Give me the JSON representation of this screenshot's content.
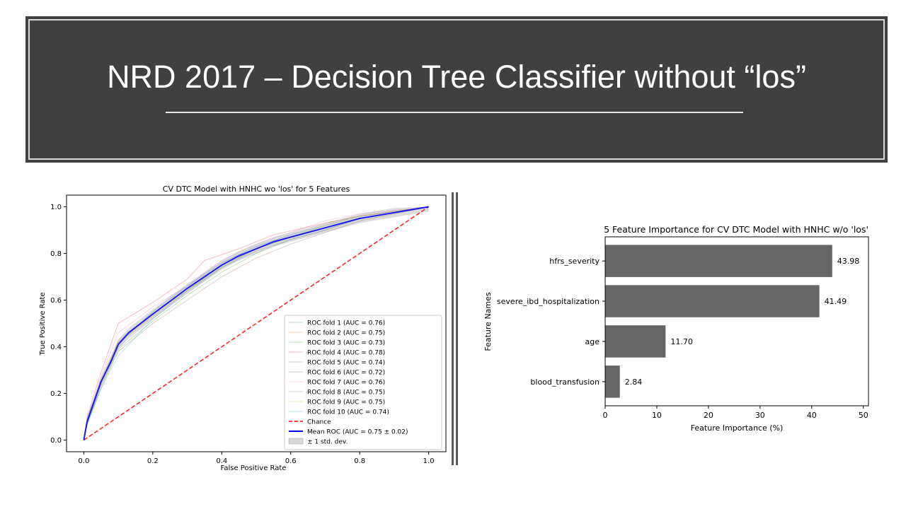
{
  "slide": {
    "title": "NRD 2017 – Decision Tree Classifier without “los”"
  },
  "chart_data": [
    {
      "type": "line",
      "title": "CV DTC Model with HNHC wo 'los' for 5 Features",
      "xlabel": "False Positive Rate",
      "ylabel": "True Positive Rate",
      "xlim": [
        -0.05,
        1.05
      ],
      "ylim": [
        -0.05,
        1.05
      ],
      "xticks": [
        "0.0",
        "0.2",
        "0.4",
        "0.6",
        "0.8",
        "1.0"
      ],
      "yticks": [
        "0.0",
        "0.2",
        "0.4",
        "0.6",
        "0.8",
        "1.0"
      ],
      "legend_position": "lower-right",
      "series": [
        {
          "name": "ROC fold 1 (AUC = 0.76)",
          "color": "#1f77b4",
          "points": [
            [
              0,
              0
            ],
            [
              0.01,
              0.09
            ],
            [
              0.05,
              0.25
            ],
            [
              0.1,
              0.41
            ],
            [
              0.2,
              0.55
            ],
            [
              0.3,
              0.66
            ],
            [
              0.4,
              0.76
            ],
            [
              0.5,
              0.83
            ],
            [
              0.6,
              0.88
            ],
            [
              0.7,
              0.92
            ],
            [
              0.8,
              0.96
            ],
            [
              1,
              1
            ]
          ]
        },
        {
          "name": "ROC fold 2 (AUC = 0.75)",
          "color": "#ff7f0e",
          "points": [
            [
              0,
              0
            ],
            [
              0.01,
              0.08
            ],
            [
              0.05,
              0.24
            ],
            [
              0.1,
              0.42
            ],
            [
              0.2,
              0.53
            ],
            [
              0.3,
              0.64
            ],
            [
              0.4,
              0.75
            ],
            [
              0.5,
              0.82
            ],
            [
              0.6,
              0.87
            ],
            [
              0.7,
              0.91
            ],
            [
              0.8,
              0.95
            ],
            [
              1,
              1
            ]
          ]
        },
        {
          "name": "ROC fold 3 (AUC = 0.73)",
          "color": "#2ca02c",
          "points": [
            [
              0,
              0
            ],
            [
              0.01,
              0.07
            ],
            [
              0.05,
              0.23
            ],
            [
              0.1,
              0.39
            ],
            [
              0.2,
              0.51
            ],
            [
              0.3,
              0.62
            ],
            [
              0.4,
              0.72
            ],
            [
              0.5,
              0.8
            ],
            [
              0.6,
              0.86
            ],
            [
              0.7,
              0.9
            ],
            [
              0.8,
              0.95
            ],
            [
              1,
              1
            ]
          ]
        },
        {
          "name": "ROC fold 4 (AUC = 0.78)",
          "color": "#d62728",
          "points": [
            [
              0,
              0
            ],
            [
              0.01,
              0.1
            ],
            [
              0.05,
              0.29
            ],
            [
              0.1,
              0.5
            ],
            [
              0.2,
              0.59
            ],
            [
              0.3,
              0.69
            ],
            [
              0.35,
              0.77
            ],
            [
              0.45,
              0.82
            ],
            [
              0.55,
              0.88
            ],
            [
              0.7,
              0.93
            ],
            [
              0.8,
              0.96
            ],
            [
              1,
              1
            ]
          ]
        },
        {
          "name": "ROC fold 5 (AUC = 0.74)",
          "color": "#9467bd",
          "points": [
            [
              0,
              0
            ],
            [
              0.01,
              0.08
            ],
            [
              0.05,
              0.25
            ],
            [
              0.1,
              0.4
            ],
            [
              0.2,
              0.52
            ],
            [
              0.3,
              0.63
            ],
            [
              0.4,
              0.74
            ],
            [
              0.5,
              0.81
            ],
            [
              0.6,
              0.86
            ],
            [
              0.7,
              0.9
            ],
            [
              0.8,
              0.95
            ],
            [
              1,
              1
            ]
          ]
        },
        {
          "name": "ROC fold 6 (AUC = 0.72)",
          "color": "#8c564b",
          "points": [
            [
              0,
              0
            ],
            [
              0.01,
              0.07
            ],
            [
              0.05,
              0.22
            ],
            [
              0.1,
              0.38
            ],
            [
              0.2,
              0.5
            ],
            [
              0.3,
              0.6
            ],
            [
              0.4,
              0.7
            ],
            [
              0.5,
              0.78
            ],
            [
              0.6,
              0.84
            ],
            [
              0.7,
              0.89
            ],
            [
              0.8,
              0.94
            ],
            [
              1,
              1
            ]
          ]
        },
        {
          "name": "ROC fold 7 (AUC = 0.76)",
          "color": "#e377c2",
          "points": [
            [
              0,
              0
            ],
            [
              0.01,
              0.09
            ],
            [
              0.05,
              0.27
            ],
            [
              0.1,
              0.46
            ],
            [
              0.2,
              0.57
            ],
            [
              0.3,
              0.66
            ],
            [
              0.4,
              0.77
            ],
            [
              0.5,
              0.84
            ],
            [
              0.6,
              0.89
            ],
            [
              0.7,
              0.94
            ],
            [
              0.8,
              0.97
            ],
            [
              1,
              1
            ]
          ]
        },
        {
          "name": "ROC fold 8 (AUC = 0.75)",
          "color": "#7f7f7f",
          "points": [
            [
              0,
              0
            ],
            [
              0.01,
              0.08
            ],
            [
              0.05,
              0.25
            ],
            [
              0.1,
              0.42
            ],
            [
              0.2,
              0.54
            ],
            [
              0.3,
              0.65
            ],
            [
              0.4,
              0.75
            ],
            [
              0.5,
              0.82
            ],
            [
              0.6,
              0.87
            ],
            [
              0.7,
              0.91
            ],
            [
              0.8,
              0.95
            ],
            [
              1,
              1
            ]
          ]
        },
        {
          "name": "ROC fold 9 (AUC = 0.75)",
          "color": "#bcbd22",
          "points": [
            [
              0,
              0
            ],
            [
              0.01,
              0.08
            ],
            [
              0.05,
              0.26
            ],
            [
              0.1,
              0.43
            ],
            [
              0.2,
              0.54
            ],
            [
              0.3,
              0.64
            ],
            [
              0.4,
              0.74
            ],
            [
              0.5,
              0.82
            ],
            [
              0.6,
              0.87
            ],
            [
              0.7,
              0.92
            ],
            [
              0.8,
              0.96
            ],
            [
              1,
              1
            ]
          ]
        },
        {
          "name": "ROC fold 10 (AUC = 0.74)",
          "color": "#17becf",
          "points": [
            [
              0,
              0
            ],
            [
              0.01,
              0.07
            ],
            [
              0.05,
              0.22
            ],
            [
              0.1,
              0.36
            ],
            [
              0.2,
              0.52
            ],
            [
              0.3,
              0.64
            ],
            [
              0.4,
              0.74
            ],
            [
              0.5,
              0.82
            ],
            [
              0.6,
              0.87
            ],
            [
              0.7,
              0.91
            ],
            [
              0.8,
              0.95
            ],
            [
              1,
              1
            ]
          ]
        }
      ],
      "chance": {
        "name": "Chance",
        "color": "#ff0000",
        "points": [
          [
            0,
            0
          ],
          [
            1,
            1
          ]
        ]
      },
      "mean": {
        "name": "Mean ROC (AUC = 0.75 ± 0.02)",
        "color": "#0000ff",
        "points": [
          [
            0,
            0
          ],
          [
            0.01,
            0.08
          ],
          [
            0.05,
            0.25
          ],
          [
            0.08,
            0.34
          ],
          [
            0.1,
            0.41
          ],
          [
            0.13,
            0.46
          ],
          [
            0.2,
            0.54
          ],
          [
            0.3,
            0.65
          ],
          [
            0.35,
            0.7
          ],
          [
            0.4,
            0.75
          ],
          [
            0.45,
            0.79
          ],
          [
            0.5,
            0.82
          ],
          [
            0.55,
            0.85
          ],
          [
            0.6,
            0.87
          ],
          [
            0.7,
            0.91
          ],
          [
            0.8,
            0.95
          ],
          [
            0.9,
            0.975
          ],
          [
            1,
            1
          ]
        ]
      },
      "std_band": {
        "name": "± 1 std. dev.",
        "color": "#bfbfbf",
        "half_width": 0.02
      }
    },
    {
      "type": "bar",
      "orientation": "horizontal",
      "title": "5 Feature Importance for CV DTC Model with HNHC w/o 'los'",
      "xlabel": "Feature Importance (%)",
      "ylabel": "Feature Names",
      "xlim": [
        0,
        51
      ],
      "xticks": [
        "0",
        "10",
        "20",
        "30",
        "40",
        "50"
      ],
      "bar_color": "#666666",
      "categories": [
        "hfrs_severity",
        "severe_ibd_hospitalization",
        "age",
        "blood_transfusion"
      ],
      "values": [
        43.98,
        41.49,
        11.7,
        2.84
      ],
      "value_labels": [
        "43.98",
        "41.49",
        "11.70",
        "2.84"
      ]
    }
  ]
}
